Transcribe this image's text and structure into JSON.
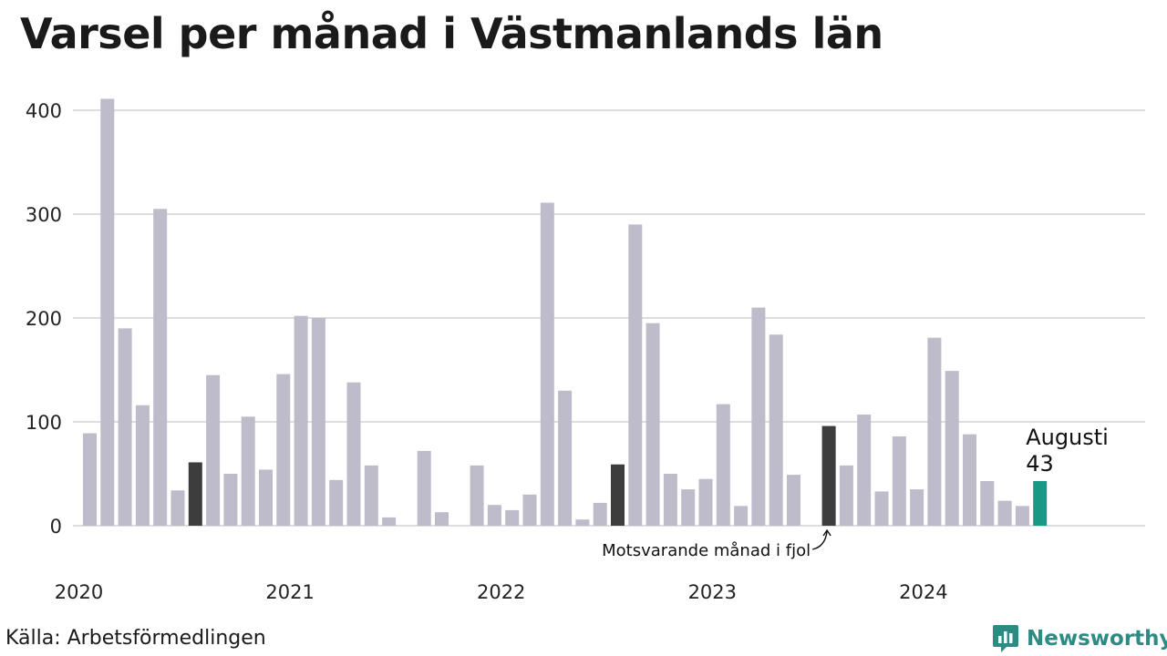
{
  "title": "Varsel per månad i Västmanlands län",
  "source": "Källa: Arbetsförmedlingen",
  "brand": "Newsworthy",
  "colors": {
    "bar": "#bebbca",
    "same_month_last_year": "#3d3d3d",
    "current": "#1a9886",
    "grid": "#dddddd",
    "brand": "#2e8b84"
  },
  "chart_data": {
    "type": "bar",
    "title": "Varsel per månad i Västmanlands län",
    "xlabel": "",
    "ylabel": "",
    "ylim": [
      0,
      400
    ],
    "yticks": [
      0,
      100,
      200,
      300,
      400
    ],
    "year_labels": [
      {
        "label": "2020",
        "index": 0
      },
      {
        "label": "2021",
        "index": 12
      },
      {
        "label": "2022",
        "index": 24
      },
      {
        "label": "2023",
        "index": 36
      },
      {
        "label": "2024",
        "index": 48
      }
    ],
    "values": [
      89,
      411,
      190,
      116,
      305,
      34,
      61,
      145,
      50,
      105,
      54,
      146,
      202,
      200,
      44,
      138,
      58,
      8,
      0,
      72,
      13,
      0,
      58,
      20,
      15,
      30,
      311,
      130,
      6,
      22,
      59,
      290,
      195,
      50,
      35,
      45,
      117,
      19,
      210,
      184,
      49,
      0,
      96,
      58,
      107,
      33,
      86,
      35,
      181,
      149,
      88,
      43,
      24,
      19,
      43
    ],
    "same_month_last_year_indices": [
      6,
      30,
      42
    ],
    "current_index": 54,
    "annotations": {
      "current_month": "Augusti",
      "current_value": "43",
      "last_year_note": "Motsvarande månad i fjol"
    },
    "grid": true
  }
}
